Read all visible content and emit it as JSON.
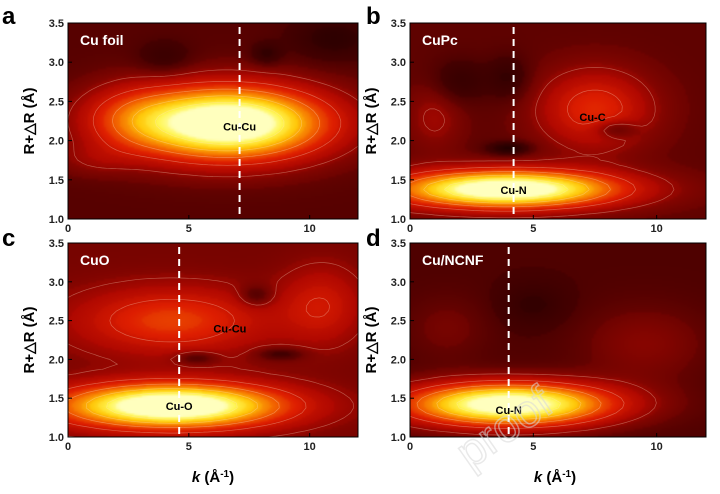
{
  "figure": {
    "x_axis_label": "k (Å⁻¹)",
    "y_axis_label": "R+△R (Å)",
    "watermark": "proof",
    "colors": {
      "low": "#2a0000",
      "mid": "#d41000",
      "high": "#ffff66",
      "marker_line": "#ffffff"
    }
  },
  "chart_data": [
    {
      "type": "heatmap",
      "panel_letter": "a",
      "title": "Cu foil",
      "xlim": [
        0,
        12
      ],
      "ylim": [
        1.0,
        3.5
      ],
      "x_ticks": [
        0,
        5,
        10
      ],
      "y_ticks": [
        1.0,
        1.5,
        2.0,
        2.5,
        3.0,
        3.5
      ],
      "show_y_tick_labels": true,
      "show_x_tick_labels": true,
      "show_y_label": true,
      "show_x_label": false,
      "dashed_line_k": 7.1,
      "background": 0.18,
      "peaks": [
        {
          "k": 6.6,
          "r": 2.22,
          "amp": 1.0,
          "sk": 2.9,
          "sr": 0.33
        },
        {
          "k": 2.5,
          "r": 2.3,
          "amp": 0.18,
          "sk": 1.5,
          "sr": 0.3
        },
        {
          "k": 8.2,
          "r": 3.1,
          "amp": -0.12,
          "sk": 0.45,
          "sr": 0.1
        },
        {
          "k": 4.0,
          "r": 3.05,
          "amp": -0.1,
          "sk": 0.8,
          "sr": 0.15
        },
        {
          "k": 11.0,
          "r": 3.3,
          "amp": -0.12,
          "sk": 1.2,
          "sr": 0.2
        },
        {
          "k": 1.0,
          "r": 1.75,
          "amp": 0.08,
          "sk": 1.2,
          "sr": 0.15
        }
      ],
      "annotations": [
        {
          "text": "Cu-Cu",
          "k": 7.1,
          "r": 2.18,
          "color": "#000000"
        }
      ]
    },
    {
      "type": "heatmap",
      "panel_letter": "b",
      "title": "CuPc",
      "xlim": [
        0,
        12
      ],
      "ylim": [
        1.0,
        3.5
      ],
      "x_ticks": [
        0,
        5,
        10
      ],
      "y_ticks": [
        1.0,
        1.5,
        2.0,
        2.5,
        3.0,
        3.5
      ],
      "show_y_tick_labels": true,
      "show_x_tick_labels": true,
      "show_y_label": true,
      "show_x_label": false,
      "dashed_line_k": 4.2,
      "background": 0.2,
      "peaks": [
        {
          "k": 3.9,
          "r": 1.38,
          "amp": 0.95,
          "sk": 3.2,
          "sr": 0.17
        },
        {
          "k": 7.5,
          "r": 2.4,
          "amp": 0.32,
          "sk": 1.6,
          "sr": 0.35
        },
        {
          "k": 8.3,
          "r": 2.15,
          "amp": -0.18,
          "sk": 0.6,
          "sr": 0.08
        },
        {
          "k": 4.0,
          "r": 1.9,
          "amp": -0.2,
          "sk": 0.6,
          "sr": 0.06
        },
        {
          "k": 2.0,
          "r": 2.75,
          "amp": -0.12,
          "sk": 0.8,
          "sr": 0.2
        },
        {
          "k": 4.0,
          "r": 2.8,
          "amp": -0.12,
          "sk": 0.6,
          "sr": 0.2
        },
        {
          "k": 1.0,
          "r": 2.3,
          "amp": 0.12,
          "sk": 0.8,
          "sr": 0.3
        }
      ],
      "annotations": [
        {
          "text": "Cu-N",
          "k": 4.2,
          "r": 1.37,
          "color": "#000000"
        },
        {
          "text": "Cu-C",
          "k": 7.4,
          "r": 2.3,
          "color": "#000000"
        }
      ]
    },
    {
      "type": "heatmap",
      "panel_letter": "c",
      "title": "CuO",
      "xlim": [
        0,
        12
      ],
      "ylim": [
        1.0,
        3.5
      ],
      "x_ticks": [
        0,
        5,
        10
      ],
      "y_ticks": [
        1.0,
        1.5,
        2.0,
        2.5,
        3.0,
        3.5
      ],
      "show_y_tick_labels": true,
      "show_x_tick_labels": true,
      "show_y_label": true,
      "show_x_label": true,
      "dashed_line_k": 4.6,
      "background": 0.24,
      "peaks": [
        {
          "k": 4.3,
          "r": 1.4,
          "amp": 0.95,
          "sk": 3.2,
          "sr": 0.2
        },
        {
          "k": 4.3,
          "r": 2.5,
          "amp": 0.32,
          "sk": 2.8,
          "sr": 0.3
        },
        {
          "k": 10.5,
          "r": 2.7,
          "amp": 0.2,
          "sk": 1.2,
          "sr": 0.35
        },
        {
          "k": 7.8,
          "r": 2.82,
          "amp": -0.15,
          "sk": 0.5,
          "sr": 0.1
        },
        {
          "k": 5.3,
          "r": 2.02,
          "amp": -0.15,
          "sk": 0.6,
          "sr": 0.06
        },
        {
          "k": 8.8,
          "r": 2.07,
          "amp": -0.15,
          "sk": 0.7,
          "sr": 0.06
        }
      ],
      "annotations": [
        {
          "text": "Cu-O",
          "k": 4.6,
          "r": 1.4,
          "color": "#000000"
        },
        {
          "text": "Cu-Cu",
          "k": 6.7,
          "r": 2.4,
          "color": "#000000"
        }
      ]
    },
    {
      "type": "heatmap",
      "panel_letter": "d",
      "title": "Cu/NCNF",
      "xlim": [
        0,
        12
      ],
      "ylim": [
        1.0,
        3.5
      ],
      "x_ticks": [
        0,
        5,
        10
      ],
      "y_ticks": [
        1.0,
        1.5,
        2.0,
        2.5,
        3.0,
        3.5
      ],
      "show_y_tick_labels": true,
      "show_x_tick_labels": true,
      "show_y_label": true,
      "show_x_label": true,
      "dashed_line_k": 4.0,
      "background": 0.16,
      "peaks": [
        {
          "k": 4.0,
          "r": 1.42,
          "amp": 0.95,
          "sk": 3.0,
          "sr": 0.2
        },
        {
          "k": 9.5,
          "r": 2.2,
          "amp": 0.12,
          "sk": 1.8,
          "sr": 0.35
        },
        {
          "k": 1.5,
          "r": 2.4,
          "amp": 0.08,
          "sk": 1.2,
          "sr": 0.3
        },
        {
          "k": 5.0,
          "r": 2.7,
          "amp": -0.08,
          "sk": 1.0,
          "sr": 0.2
        }
      ],
      "annotations": [
        {
          "text": "Cu-N",
          "k": 4.0,
          "r": 1.35,
          "color": "#000000"
        }
      ]
    }
  ]
}
